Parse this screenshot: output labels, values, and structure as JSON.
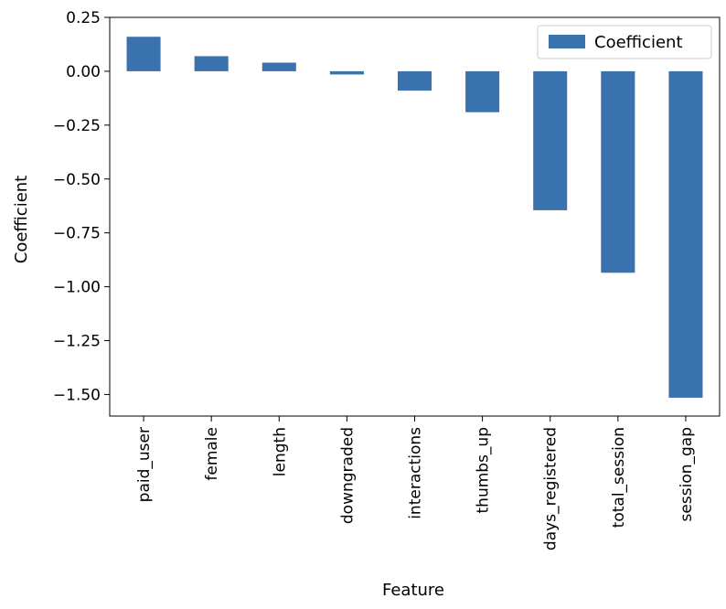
{
  "chart_data": {
    "type": "bar",
    "categories": [
      "paid_user",
      "female",
      "length",
      "downgraded",
      "interactions",
      "thumbs_up",
      "days_registered",
      "total_session",
      "session_gap"
    ],
    "series": [
      {
        "name": "Coefficient",
        "values": [
          0.16,
          0.07,
          0.04,
          -0.015,
          -0.09,
          -0.19,
          -0.645,
          -0.935,
          -1.515
        ]
      }
    ],
    "xlabel": "Feature",
    "ylabel": "Coefficient",
    "ylim": [
      -1.6,
      0.25
    ],
    "yticks": [
      0.25,
      0.0,
      -0.25,
      -0.5,
      -0.75,
      -1.0,
      -1.25,
      -1.5
    ],
    "ytick_labels": [
      "0.25",
      "0.00",
      "−0.25",
      "−0.50",
      "−0.75",
      "−1.00",
      "−1.25",
      "−1.50"
    ],
    "grid": false,
    "legend_position": "top-right",
    "bar_color": "#3a72b0"
  }
}
